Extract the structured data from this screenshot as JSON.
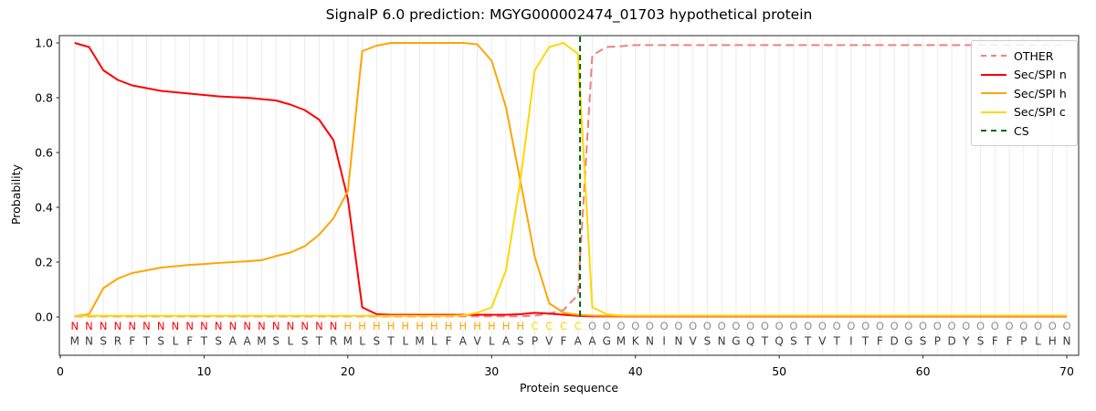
{
  "chart_data": {
    "type": "line",
    "title": "SignalP 6.0 prediction: MGYG000002474_01703 hypothetical protein",
    "xlabel": "Protein sequence",
    "ylabel": "Probability",
    "x_start": 1,
    "x_ticks": [
      0,
      10,
      20,
      30,
      40,
      50,
      60,
      70
    ],
    "y_ticks": [
      0.0,
      0.2,
      0.4,
      0.6,
      0.8,
      1.0
    ],
    "ylim": [
      -0.14,
      1.05
    ],
    "grid": "vertical gridline at every residue position, light gray",
    "legend_position": "upper right",
    "series": [
      {
        "name": "OTHER",
        "color": "#f08080",
        "dashed": true,
        "values": [
          0.002,
          0.002,
          0.002,
          0.002,
          0.002,
          0.002,
          0.002,
          0.002,
          0.002,
          0.002,
          0.002,
          0.002,
          0.002,
          0.002,
          0.002,
          0.002,
          0.002,
          0.002,
          0.002,
          0.002,
          0.002,
          0.002,
          0.002,
          0.002,
          0.002,
          0.002,
          0.002,
          0.002,
          0.002,
          0.002,
          0.002,
          0.002,
          0.005,
          0.012,
          0.025,
          0.08,
          0.955,
          0.985,
          0.988,
          0.992,
          0.992,
          0.992,
          0.992,
          0.992,
          0.992,
          0.992,
          0.992,
          0.992,
          0.992,
          0.992,
          0.992,
          0.992,
          0.992,
          0.992,
          0.992,
          0.992,
          0.992,
          0.992,
          0.992,
          0.992,
          0.992,
          0.992,
          0.992,
          0.992,
          0.992,
          0.992,
          0.992,
          0.992,
          0.992,
          0.992
        ]
      },
      {
        "name": "Sec/SPI n",
        "color": "#ff0000",
        "dashed": false,
        "values": [
          1.0,
          0.985,
          0.9,
          0.865,
          0.845,
          0.835,
          0.825,
          0.82,
          0.815,
          0.81,
          0.805,
          0.802,
          0.8,
          0.795,
          0.79,
          0.775,
          0.755,
          0.72,
          0.645,
          0.43,
          0.035,
          0.01,
          0.008,
          0.008,
          0.008,
          0.008,
          0.008,
          0.008,
          0.008,
          0.008,
          0.008,
          0.01,
          0.015,
          0.012,
          0.008,
          0.004,
          0.002,
          0.002,
          0.002,
          0.002,
          0.002,
          0.002,
          0.002,
          0.002,
          0.002,
          0.002,
          0.002,
          0.002,
          0.002,
          0.002,
          0.002,
          0.002,
          0.002,
          0.002,
          0.002,
          0.002,
          0.002,
          0.002,
          0.002,
          0.002,
          0.002,
          0.002,
          0.002,
          0.002,
          0.002,
          0.002,
          0.002,
          0.002,
          0.002,
          0.002
        ]
      },
      {
        "name": "Sec/SPI h",
        "color": "#ffa500",
        "dashed": false,
        "values": [
          0.003,
          0.01,
          0.105,
          0.14,
          0.16,
          0.17,
          0.18,
          0.185,
          0.19,
          0.193,
          0.197,
          0.2,
          0.203,
          0.207,
          0.222,
          0.235,
          0.258,
          0.3,
          0.36,
          0.46,
          0.97,
          0.99,
          1.0,
          1.0,
          1.0,
          1.0,
          1.0,
          1.0,
          0.995,
          0.935,
          0.765,
          0.495,
          0.22,
          0.05,
          0.015,
          0.008,
          0.005,
          0.004,
          0.004,
          0.004,
          0.004,
          0.004,
          0.004,
          0.004,
          0.004,
          0.004,
          0.004,
          0.004,
          0.004,
          0.004,
          0.004,
          0.004,
          0.004,
          0.004,
          0.004,
          0.004,
          0.004,
          0.004,
          0.004,
          0.004,
          0.004,
          0.004,
          0.004,
          0.004,
          0.004,
          0.004,
          0.004,
          0.004,
          0.004,
          0.004
        ]
      },
      {
        "name": "Sec/SPI c",
        "color": "#ffd700",
        "dashed": false,
        "values": [
          0.004,
          0.004,
          0.004,
          0.004,
          0.004,
          0.004,
          0.004,
          0.004,
          0.004,
          0.004,
          0.004,
          0.004,
          0.004,
          0.004,
          0.004,
          0.004,
          0.004,
          0.004,
          0.004,
          0.004,
          0.004,
          0.004,
          0.004,
          0.004,
          0.004,
          0.004,
          0.004,
          0.006,
          0.015,
          0.035,
          0.17,
          0.5,
          0.9,
          0.985,
          1.0,
          0.96,
          0.035,
          0.01,
          0.005,
          0.005,
          0.005,
          0.005,
          0.005,
          0.005,
          0.005,
          0.005,
          0.005,
          0.005,
          0.005,
          0.005,
          0.005,
          0.005,
          0.005,
          0.005,
          0.005,
          0.005,
          0.005,
          0.005,
          0.005,
          0.005,
          0.005,
          0.005,
          0.005,
          0.005,
          0.005,
          0.005,
          0.005,
          0.005,
          0.005,
          0.005
        ]
      }
    ],
    "cs_marker": {
      "name": "CS",
      "x": 36.15,
      "color": "#006400",
      "dashed": true
    },
    "sequence": "MNSRFTSLFTSAAMSLSTRMLSTLMLFAVLASPVFAAGMKNINVSNGQTQSTVTITFDGSPDYSFFPLHN",
    "region_labels": "NNNNNNNNNNNNNNNNNNNHHHHHHHHHHHHHCCCCOOOOOOOOOOOOOOOOOOOOOOOOOOOOOOOOOO",
    "region_colors": {
      "N": "#ff0000",
      "H": "#ffa500",
      "C": "#ffd700",
      "O": "#909090"
    },
    "sequence_color": "#3a3a3a",
    "gridline_color": "#ececec",
    "spine_color": "#262626"
  }
}
